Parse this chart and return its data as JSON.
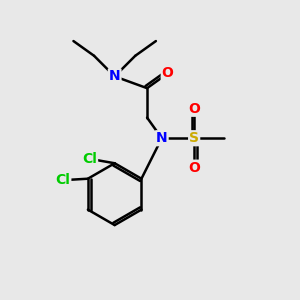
{
  "background_color": "#e8e8e8",
  "bond_color": "#000000",
  "atom_colors": {
    "N": "#0000ff",
    "O": "#ff0000",
    "S": "#ccaa00",
    "Cl": "#00cc00",
    "C": "#000000"
  },
  "line_width": 1.8,
  "font_size": 10,
  "figsize": [
    3.0,
    3.0
  ],
  "dpi": 100
}
